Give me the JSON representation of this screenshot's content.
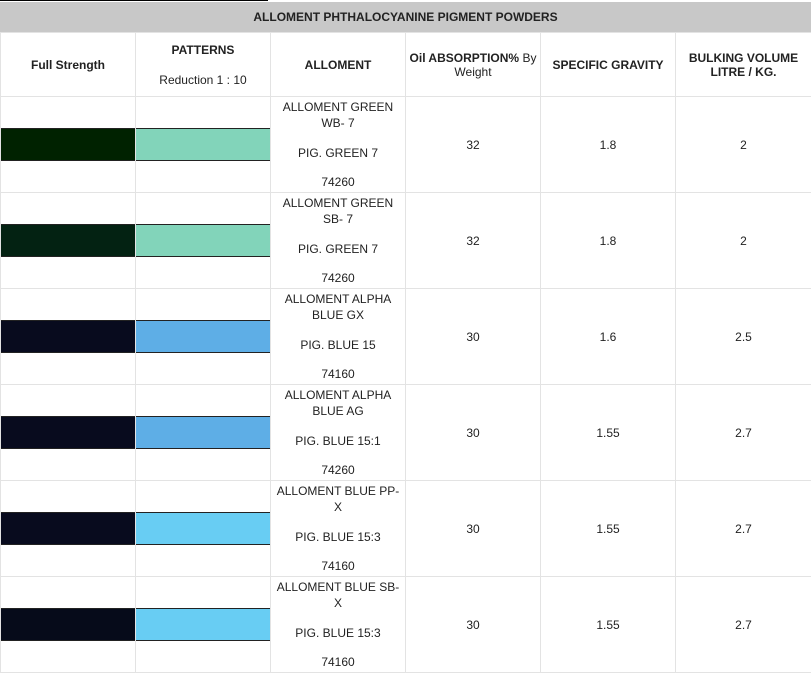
{
  "title": "ALLOMENT PHTHALOCYANINE PIGMENT POWDERS",
  "headers": {
    "full_strength": "Full Strength",
    "patterns": "PATTERNS",
    "patterns_sub": "Reduction 1 : 10",
    "alloment": "ALLOMENT",
    "oil_absorption_bold": "Oil ABSORPTION%",
    "oil_absorption_rest": " By Weight",
    "specific_gravity": "SPECIFIC GRAVITY",
    "bulking_volume": "BULKING VOLUME LITRE / KG."
  },
  "rows": [
    {
      "name": "ALLOMENT GREEN WB- 7",
      "pigment": "PIG. GREEN 7",
      "ci": "74260",
      "oil": "32",
      "sg": "1.8",
      "bulk": "2",
      "full_color": "#002200",
      "pattern_color": "#82d4ba"
    },
    {
      "name": "ALLOMENT GREEN SB- 7",
      "pigment": "PIG. GREEN 7",
      "ci": "74260",
      "oil": "32",
      "sg": "1.8",
      "bulk": "2",
      "full_color": "#032212",
      "pattern_color": "#82d4ba"
    },
    {
      "name": "ALLOMENT ALPHA BLUE GX",
      "pigment": "PIG. BLUE 15",
      "ci": "74160",
      "oil": "30",
      "sg": "1.6",
      "bulk": "2.5",
      "full_color": "#080b1e",
      "pattern_color": "#5eaee6"
    },
    {
      "name": "ALLOMENT ALPHA BLUE AG",
      "pigment": "PIG. BLUE 15:1",
      "ci": "74260",
      "oil": "30",
      "sg": "1.55",
      "bulk": "2.7",
      "full_color": "#080b1e",
      "pattern_color": "#5eaee6"
    },
    {
      "name": "ALLOMENT BLUE PP-X",
      "pigment": "PIG. BLUE 15:3",
      "ci": "74160",
      "oil": "30",
      "sg": "1.55",
      "bulk": "2.7",
      "full_color": "#080b1e",
      "pattern_color": "#68cdf3"
    },
    {
      "name": "ALLOMENT BLUE SB-X",
      "pigment": "PIG. BLUE 15:3",
      "ci": "74160",
      "oil": "30",
      "sg": "1.55",
      "bulk": "2.7",
      "full_color": "#060b1a",
      "pattern_color": "#68cdf3"
    }
  ]
}
